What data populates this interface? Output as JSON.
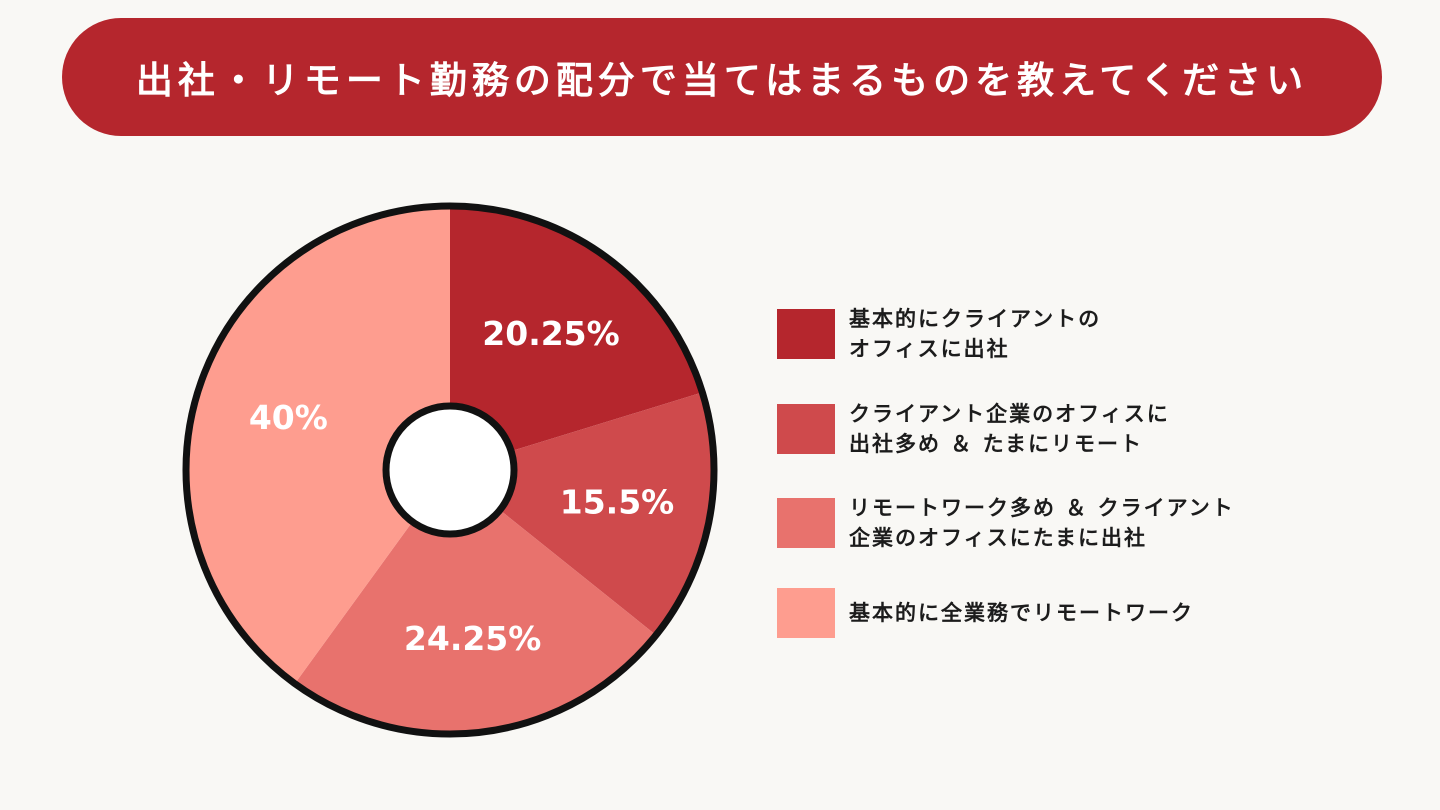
{
  "title": "出社・リモート勤務の配分で当てはまるものを教えてください",
  "chart_data": {
    "type": "pie",
    "title": "出社・リモート勤務の配分で当てはまるものを教えてください",
    "labels": [
      "基本的にクライアントの\nオフィスに出社",
      "クライアント企業のオフィスに\n出社多め ＆ たまにリモート",
      "リモートワーク多め ＆ クライアント\n企業のオフィスにたまに出社",
      "基本的に全業務でリモートワーク"
    ],
    "values": [
      20.25,
      15.5,
      24.25,
      40
    ],
    "value_labels": [
      "20.25%",
      "15.5%",
      "24.25%",
      "40%"
    ],
    "colors": [
      "#b5262d",
      "#cf4a4c",
      "#e8726d",
      "#fe9d8f"
    ],
    "legend_position": "right",
    "donut": true
  },
  "colors": {
    "banner": "#b5262d",
    "background": "#f9f8f5",
    "outline": "#111111"
  }
}
